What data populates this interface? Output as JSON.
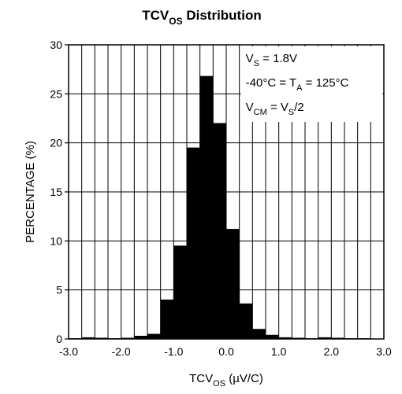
{
  "chart_data": {
    "type": "bar",
    "title": {
      "main": "TCV",
      "sub": "OS",
      "rest": " Distribution"
    },
    "xlabel": {
      "main": "TCV",
      "sub": "OS",
      "rest": " (µV/C)"
    },
    "ylabel": "PERCENTAGE (%)",
    "xlim": [
      -3.0,
      3.0
    ],
    "ylim": [
      0,
      30
    ],
    "x_ticks": [
      "-3.0",
      "-2.0",
      "-1.0",
      "0.0",
      "1.0",
      "2.0",
      "3.0"
    ],
    "x_tick_values": [
      -3.0,
      -2.0,
      -1.0,
      0.0,
      1.0,
      2.0,
      3.0
    ],
    "y_ticks": [
      "0",
      "5",
      "10",
      "15",
      "20",
      "25",
      "30"
    ],
    "y_tick_values": [
      0,
      5,
      10,
      15,
      20,
      25,
      30
    ],
    "grid": true,
    "bin_width": 0.25,
    "bins": [
      {
        "x0": -3.0,
        "x1": -2.75,
        "value": 0.05
      },
      {
        "x0": -2.75,
        "x1": -2.5,
        "value": 0.15
      },
      {
        "x0": -2.5,
        "x1": -2.25,
        "value": 0.1
      },
      {
        "x0": -2.25,
        "x1": -2.0,
        "value": 0.05
      },
      {
        "x0": -2.0,
        "x1": -1.75,
        "value": 0.1
      },
      {
        "x0": -1.75,
        "x1": -1.5,
        "value": 0.3
      },
      {
        "x0": -1.5,
        "x1": -1.25,
        "value": 0.5
      },
      {
        "x0": -1.25,
        "x1": -1.0,
        "value": 4.0
      },
      {
        "x0": -1.0,
        "x1": -0.75,
        "value": 9.5
      },
      {
        "x0": -0.75,
        "x1": -0.5,
        "value": 19.5
      },
      {
        "x0": -0.5,
        "x1": -0.25,
        "value": 26.8
      },
      {
        "x0": -0.25,
        "x1": 0.0,
        "value": 22.0
      },
      {
        "x0": 0.0,
        "x1": 0.25,
        "value": 11.2
      },
      {
        "x0": 0.25,
        "x1": 0.5,
        "value": 3.6
      },
      {
        "x0": 0.5,
        "x1": 0.75,
        "value": 1.0
      },
      {
        "x0": 0.75,
        "x1": 1.0,
        "value": 0.4
      },
      {
        "x0": 1.0,
        "x1": 1.25,
        "value": 0.15
      },
      {
        "x0": 1.25,
        "x1": 1.5,
        "value": 0.1
      },
      {
        "x0": 1.5,
        "x1": 1.75,
        "value": 0.05
      },
      {
        "x0": 1.75,
        "x1": 2.0,
        "value": 0.15
      },
      {
        "x0": 2.0,
        "x1": 2.25,
        "value": 0.1
      },
      {
        "x0": 2.25,
        "x1": 2.5,
        "value": 0.05
      },
      {
        "x0": 2.5,
        "x1": 2.75,
        "value": 0.05
      },
      {
        "x0": 2.75,
        "x1": 3.0,
        "value": 0.0
      }
    ],
    "annotations": [
      {
        "parts": [
          {
            "t": "V"
          },
          {
            "t": "S",
            "sub": true
          },
          {
            "t": " = 1.8V"
          }
        ]
      },
      {
        "parts": [
          {
            "t": "-40°C = T"
          },
          {
            "t": "A",
            "sub": true
          },
          {
            "t": " = 125°C"
          }
        ]
      },
      {
        "parts": [
          {
            "t": "V"
          },
          {
            "t": "CM",
            "sub": true
          },
          {
            "t": " = V"
          },
          {
            "t": "S",
            "sub": true
          },
          {
            "t": "/2"
          }
        ]
      }
    ]
  }
}
